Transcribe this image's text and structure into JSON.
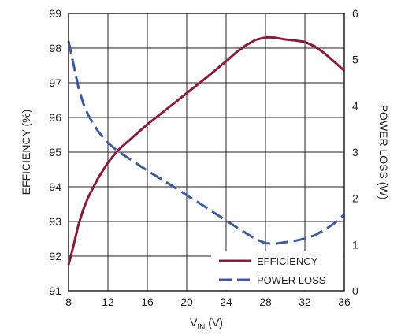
{
  "chart_data": {
    "type": "line",
    "xlabel": {
      "main": "V",
      "sub": "IN",
      "unit": " (V)"
    },
    "ylabel_left": "EFFICIENCY (%)",
    "ylabel_right": "POWER LOSS (W)",
    "xlim": [
      8,
      36
    ],
    "ylim_left": [
      91,
      99
    ],
    "ylim_right": [
      0,
      6
    ],
    "x_ticks": [
      "8",
      "12",
      "16",
      "20",
      "24",
      "28",
      "32",
      "36"
    ],
    "y_ticks_left": [
      "91",
      "92",
      "93",
      "94",
      "95",
      "96",
      "97",
      "98",
      "99"
    ],
    "y_ticks_right": [
      "0",
      "1",
      "2",
      "3",
      "4",
      "5",
      "6"
    ],
    "grid": true,
    "legend_position": "bottom-right",
    "series": [
      {
        "name": "EFFICIENCY",
        "axis": "left",
        "color": "#8b1a3a",
        "dash": "solid",
        "x": [
          8,
          8.5,
          9,
          9.5,
          10,
          11,
          12,
          13,
          14,
          16,
          18,
          20,
          22,
          24,
          25,
          26,
          27,
          28,
          28.5,
          29,
          30,
          31,
          32,
          33,
          34,
          35,
          36
        ],
        "y": [
          91.75,
          92.3,
          92.9,
          93.35,
          93.7,
          94.25,
          94.7,
          95.05,
          95.3,
          95.8,
          96.25,
          96.7,
          97.15,
          97.62,
          97.87,
          98.08,
          98.24,
          98.31,
          98.31,
          98.3,
          98.25,
          98.22,
          98.18,
          98.05,
          97.85,
          97.6,
          97.35
        ]
      },
      {
        "name": "POWER LOSS",
        "axis": "right",
        "color": "#3a5aa6",
        "dash": "dashed",
        "x": [
          8,
          8.5,
          9,
          9.5,
          10,
          11,
          12,
          13,
          14,
          16,
          18,
          20,
          22,
          24,
          26,
          27,
          28,
          29,
          30,
          31,
          32,
          33,
          34,
          35,
          36
        ],
        "y": [
          5.4,
          4.9,
          4.4,
          4.05,
          3.8,
          3.45,
          3.2,
          3.02,
          2.88,
          2.6,
          2.34,
          2.07,
          1.8,
          1.52,
          1.25,
          1.12,
          1.03,
          1.02,
          1.05,
          1.08,
          1.13,
          1.2,
          1.32,
          1.46,
          1.65
        ]
      }
    ]
  }
}
